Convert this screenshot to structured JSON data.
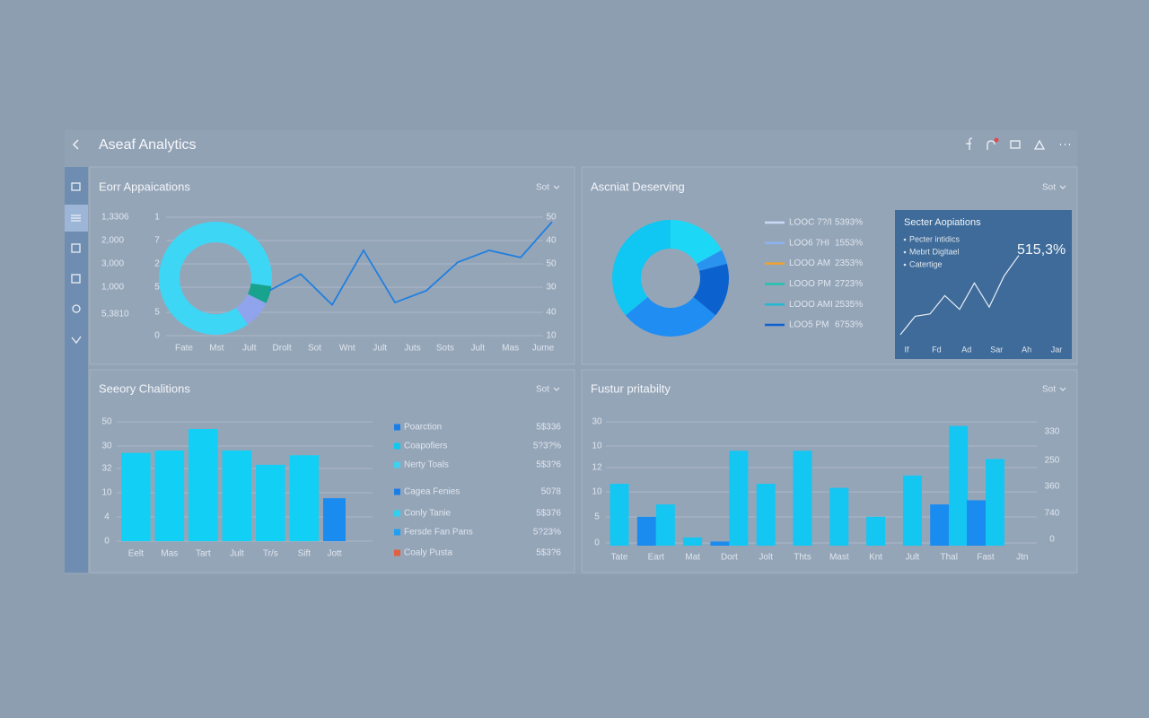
{
  "header": {
    "title": "Aseaf Analytics"
  },
  "panel1": {
    "title": "Eorr Appaications",
    "menu": "Sot",
    "axis_labels": [
      "1,3306",
      "2,000",
      "3,000",
      "1,000",
      "5,3810"
    ],
    "inner_labels": [
      "1",
      "7",
      "2",
      "5",
      "5",
      "0"
    ],
    "y2_labels": [
      "50",
      "40",
      "50",
      "30",
      "40",
      "10"
    ],
    "x_labels": [
      "Fate",
      "Mst",
      "Jult",
      "Drolt",
      "Sot",
      "Wnt",
      "Jult",
      "Juts",
      "Sots",
      "Jult",
      "Mas",
      "Jume"
    ],
    "donut": {
      "type": "pie",
      "values": [
        87,
        5,
        8
      ],
      "colors": [
        "#3dd6f4",
        "#18a38e",
        "#8fa4ec"
      ]
    },
    "line": {
      "type": "line",
      "values": [
        19,
        26,
        13,
        36,
        14,
        19,
        31,
        36,
        33,
        48
      ],
      "ylim": [
        0,
        50
      ],
      "color": "#1f7fe0"
    }
  },
  "panel2": {
    "title": "Ascniat Deserving",
    "menu": "Sot",
    "donut": {
      "type": "pie",
      "values": [
        17,
        4,
        15,
        28,
        36
      ],
      "colors": [
        "#1cd8f6",
        "#2a93f0",
        "#0b62cf",
        "#1f8df1",
        "#10c6f2"
      ]
    },
    "legend": [
      {
        "label": "LOOC 7?/I",
        "value": "5393%",
        "color": "#c8daf6"
      },
      {
        "label": "LOO6 7HI",
        "value": "1553%",
        "color": "#8ab2f0"
      },
      {
        "label": "LOOO AM",
        "value": "2353%",
        "color": "#f0a030"
      },
      {
        "label": "LOOO PM",
        "value": "2723%",
        "color": "#22c2b0"
      },
      {
        "label": "LOOO AMI",
        "value": "2535%",
        "color": "#20b8d2"
      },
      {
        "label": "LOO5 PM",
        "value": "6753%",
        "color": "#1060d0"
      }
    ],
    "card": {
      "title": "Secter Aopiations",
      "items": [
        "Pecter intidics",
        "Mebrt Digltael",
        "Catertige"
      ],
      "big": "515,3%",
      "x_labels": [
        "If",
        "Fd",
        "Ad",
        "Sar",
        "Ah",
        "Jar"
      ],
      "line": {
        "type": "line",
        "values": [
          4,
          20,
          22,
          38,
          26,
          49,
          28,
          55,
          73
        ],
        "ylim": [
          0,
          100
        ],
        "color": "#e8eef5"
      }
    }
  },
  "panel3": {
    "title": "Seeory Chalitions",
    "menu": "Sot",
    "axis_labels": [
      "50",
      "30",
      "32",
      "10",
      "4",
      "0"
    ],
    "chart": {
      "type": "bar",
      "categories": [
        "Eelt",
        "Mas",
        "Tart",
        "Jult",
        "Tr/s",
        "Sift",
        "Jott"
      ],
      "values": [
        37,
        38,
        47,
        38,
        32,
        36,
        18
      ],
      "ylim": [
        0,
        50
      ],
      "colors": [
        "#12d0f5",
        "#12d0f5",
        "#12d0f5",
        "#12d0f5",
        "#12d0f5",
        "#12d0f5",
        "#1a8cf0"
      ]
    },
    "legend": [
      {
        "label": "Poarction",
        "value": "5$336",
        "color": "#1a7ee8"
      },
      {
        "label": "Coapofiers",
        "value": "5?3?%",
        "color": "#10c8f0"
      },
      {
        "label": "Nerty Toals",
        "value": "5$3?6",
        "color": "#40d0f0"
      },
      {
        "label": "Cagea Fenies",
        "value": "5078",
        "color": "#1a7ee8"
      },
      {
        "label": "Conly Tanie",
        "value": "5$376",
        "color": "#30d0f0"
      },
      {
        "label": "Fersde Fan Pans",
        "value": "5?23%",
        "color": "#20a0f0"
      },
      {
        "label": "Coaly Pusta",
        "value": "5$3?6",
        "color": "#e06040"
      }
    ]
  },
  "panel4": {
    "title": "Fustur pritabilty",
    "menu": "Sot",
    "axis_labels": [
      "30",
      "10",
      "12",
      "10",
      "5",
      "0"
    ],
    "y2_labels": [
      "330",
      "250",
      "360",
      "740",
      "0"
    ],
    "chart": {
      "type": "bar",
      "categories": [
        "Tate",
        "Eart",
        "Mat",
        "Dort",
        "Jolt",
        "Thts",
        "Mast",
        "Knt",
        "Jult",
        "Thal",
        "Fast",
        "Jtn"
      ],
      "ylim": [
        0,
        30
      ],
      "series": [
        {
          "color": "#1a8cf0",
          "values": [
            null,
            7,
            null,
            1,
            null,
            null,
            null,
            null,
            null,
            10,
            11,
            null
          ]
        },
        {
          "color": "#14c6f2",
          "values": [
            15,
            10,
            2,
            23,
            15,
            23,
            14,
            7,
            17,
            29,
            21,
            null
          ]
        }
      ]
    }
  }
}
